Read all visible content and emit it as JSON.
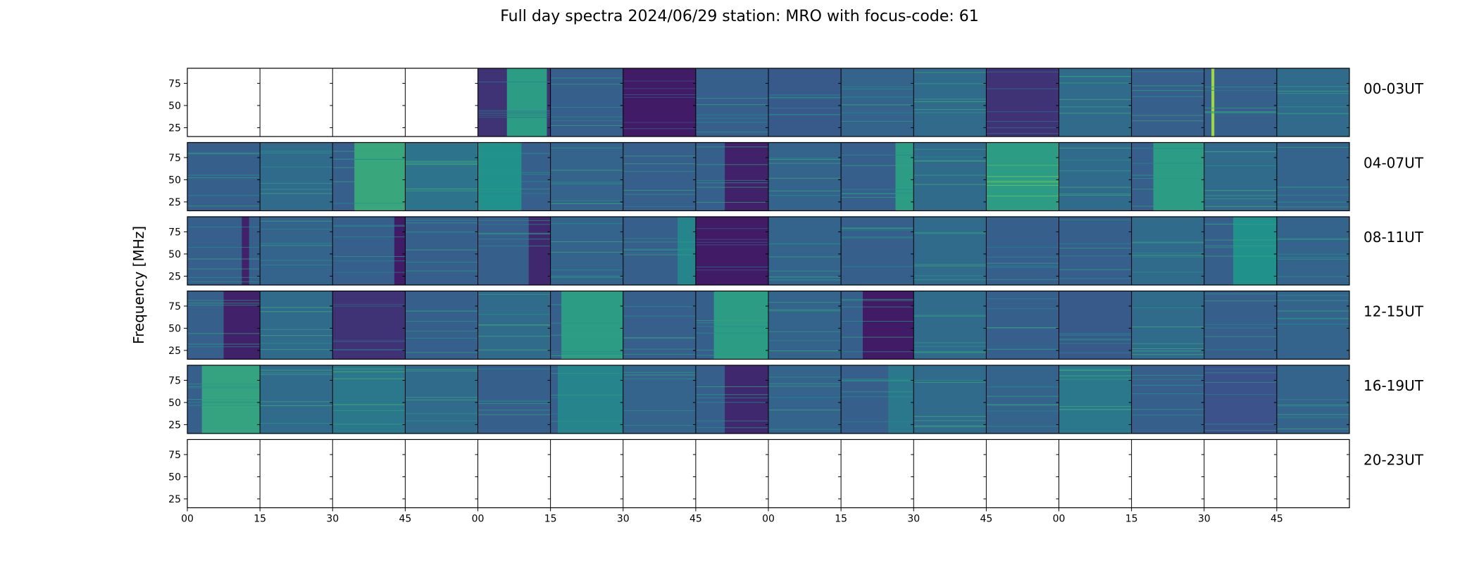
{
  "figure": {
    "title": "Full day spectra 2024/06/29 station: MRO with focus-code: 61",
    "ylabel": "Frequency [MHz]"
  },
  "colors": {
    "background_dark": "#440154",
    "mid": "#3b528b",
    "teal": "#21918c",
    "green": "#5ec962"
  },
  "chart_data": {
    "type": "heatmap",
    "colormap": "viridis",
    "title": "Full day spectra 2024/06/29 station: MRO with focus-code: 61",
    "ylabel": "Frequency [MHz]",
    "ylim": [
      15,
      92
    ],
    "y_ticks": [
      25,
      50,
      75
    ],
    "x_tick_labels": [
      "00",
      "15",
      "30",
      "45",
      "00",
      "15",
      "30",
      "45",
      "00",
      "15",
      "30",
      "45",
      "00",
      "15",
      "30",
      "45"
    ],
    "rows": [
      {
        "label": "00-03UT",
        "panels": [
          {
            "data": false
          },
          {
            "data": false
          },
          {
            "data": false
          },
          {
            "data": false
          },
          {
            "data": true,
            "level": 0.15,
            "bands": [
              {
                "from": 0.4,
                "to": 0.95,
                "level": 0.55
              }
            ]
          },
          {
            "data": true,
            "level": 0.3
          },
          {
            "data": true,
            "level": 0.08
          },
          {
            "data": true,
            "level": 0.3
          },
          {
            "data": true,
            "level": 0.28
          },
          {
            "data": true,
            "level": 0.32
          },
          {
            "data": true,
            "level": 0.35
          },
          {
            "data": true,
            "level": 0.15
          },
          {
            "data": true,
            "level": 0.35
          },
          {
            "data": true,
            "level": 0.3
          },
          {
            "data": true,
            "level": 0.3,
            "bands": [
              {
                "from": 0.1,
                "to": 0.14,
                "level": 0.85
              }
            ]
          },
          {
            "data": true,
            "level": 0.35
          }
        ]
      },
      {
        "label": "04-07UT",
        "panels": [
          {
            "data": true,
            "level": 0.3
          },
          {
            "data": true,
            "level": 0.35
          },
          {
            "data": true,
            "level": 0.3,
            "bands": [
              {
                "from": 0.3,
                "to": 1.0,
                "level": 0.6
              }
            ]
          },
          {
            "data": true,
            "level": 0.38
          },
          {
            "data": true,
            "level": 0.3,
            "bands": [
              {
                "from": 0.0,
                "to": 0.6,
                "level": 0.5
              }
            ]
          },
          {
            "data": true,
            "level": 0.32
          },
          {
            "data": true,
            "level": 0.3
          },
          {
            "data": true,
            "level": 0.3,
            "bands": [
              {
                "from": 0.4,
                "to": 1.0,
                "level": 0.1
              }
            ]
          },
          {
            "data": true,
            "level": 0.32
          },
          {
            "data": true,
            "level": 0.3,
            "bands": [
              {
                "from": 0.75,
                "to": 1.0,
                "level": 0.55
              }
            ]
          },
          {
            "data": true,
            "level": 0.35
          },
          {
            "data": true,
            "level": 0.55
          },
          {
            "data": true,
            "level": 0.35
          },
          {
            "data": true,
            "level": 0.3,
            "bands": [
              {
                "from": 0.3,
                "to": 1.0,
                "level": 0.55
              }
            ]
          },
          {
            "data": true,
            "level": 0.35
          },
          {
            "data": true,
            "level": 0.32
          }
        ]
      },
      {
        "label": "08-11UT",
        "panels": [
          {
            "data": true,
            "level": 0.3,
            "bands": [
              {
                "from": 0.75,
                "to": 0.85,
                "level": 0.1
              }
            ]
          },
          {
            "data": true,
            "level": 0.32
          },
          {
            "data": true,
            "level": 0.3,
            "bands": [
              {
                "from": 0.85,
                "to": 1.0,
                "level": 0.08
              }
            ]
          },
          {
            "data": true,
            "level": 0.3
          },
          {
            "data": true,
            "level": 0.3,
            "bands": [
              {
                "from": 0.7,
                "to": 1.0,
                "level": 0.12
              }
            ]
          },
          {
            "data": true,
            "level": 0.32
          },
          {
            "data": true,
            "level": 0.3,
            "bands": [
              {
                "from": 0.75,
                "to": 1.0,
                "level": 0.45
              }
            ]
          },
          {
            "data": true,
            "level": 0.08
          },
          {
            "data": true,
            "level": 0.32
          },
          {
            "data": true,
            "level": 0.3
          },
          {
            "data": true,
            "level": 0.35
          },
          {
            "data": true,
            "level": 0.3
          },
          {
            "data": true,
            "level": 0.3
          },
          {
            "data": true,
            "level": 0.35
          },
          {
            "data": true,
            "level": 0.3,
            "bands": [
              {
                "from": 0.4,
                "to": 1.0,
                "level": 0.5
              }
            ]
          },
          {
            "data": true,
            "level": 0.32
          }
        ]
      },
      {
        "label": "12-15UT",
        "panels": [
          {
            "data": true,
            "level": 0.3,
            "bands": [
              {
                "from": 0.5,
                "to": 1.0,
                "level": 0.1
              }
            ]
          },
          {
            "data": true,
            "level": 0.35
          },
          {
            "data": true,
            "level": 0.15
          },
          {
            "data": true,
            "level": 0.3
          },
          {
            "data": true,
            "level": 0.35
          },
          {
            "data": true,
            "level": 0.3,
            "bands": [
              {
                "from": 0.15,
                "to": 1.0,
                "level": 0.55
              }
            ]
          },
          {
            "data": true,
            "level": 0.3
          },
          {
            "data": true,
            "level": 0.3,
            "bands": [
              {
                "from": 0.25,
                "to": 1.0,
                "level": 0.55
              }
            ]
          },
          {
            "data": true,
            "level": 0.32
          },
          {
            "data": true,
            "level": 0.3,
            "bands": [
              {
                "from": 0.3,
                "to": 1.0,
                "level": 0.08
              }
            ]
          },
          {
            "data": true,
            "level": 0.35
          },
          {
            "data": true,
            "level": 0.3
          },
          {
            "data": true,
            "level": 0.28
          },
          {
            "data": true,
            "level": 0.35
          },
          {
            "data": true,
            "level": 0.3
          },
          {
            "data": true,
            "level": 0.32
          }
        ]
      },
      {
        "label": "16-19UT",
        "panels": [
          {
            "data": true,
            "level": 0.3,
            "bands": [
              {
                "from": 0.2,
                "to": 1.0,
                "level": 0.58
              }
            ]
          },
          {
            "data": true,
            "level": 0.35
          },
          {
            "data": true,
            "level": 0.4
          },
          {
            "data": true,
            "level": 0.35
          },
          {
            "data": true,
            "level": 0.3
          },
          {
            "data": true,
            "level": 0.3,
            "bands": [
              {
                "from": 0.1,
                "to": 1.0,
                "level": 0.45
              }
            ]
          },
          {
            "data": true,
            "level": 0.32
          },
          {
            "data": true,
            "level": 0.3,
            "bands": [
              {
                "from": 0.4,
                "to": 1.0,
                "level": 0.12
              }
            ]
          },
          {
            "data": true,
            "level": 0.32
          },
          {
            "data": true,
            "level": 0.3,
            "bands": [
              {
                "from": 0.65,
                "to": 1.0,
                "level": 0.4
              }
            ]
          },
          {
            "data": true,
            "level": 0.35
          },
          {
            "data": true,
            "level": 0.32
          },
          {
            "data": true,
            "level": 0.4
          },
          {
            "data": true,
            "level": 0.3
          },
          {
            "data": true,
            "level": 0.25
          },
          {
            "data": true,
            "level": 0.32
          }
        ]
      },
      {
        "label": "20-23UT",
        "panels": [
          {
            "data": false
          },
          {
            "data": false
          },
          {
            "data": false
          },
          {
            "data": false
          },
          {
            "data": false
          },
          {
            "data": false
          },
          {
            "data": false
          },
          {
            "data": false
          },
          {
            "data": false
          },
          {
            "data": false
          },
          {
            "data": false
          },
          {
            "data": false
          },
          {
            "data": false
          },
          {
            "data": false
          },
          {
            "data": false
          },
          {
            "data": false
          }
        ]
      }
    ]
  }
}
